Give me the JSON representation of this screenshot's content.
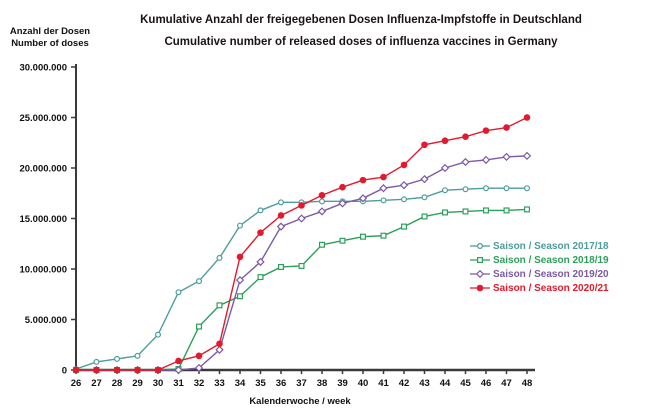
{
  "title": {
    "line1_de": "Kumulative Anzahl der freigegebenen Dosen Influenza-Impfstoffe in Deutschland",
    "line2_en": "Cumulative number of released doses of influenza vaccines in Germany"
  },
  "y_axis_label": {
    "line1": "Anzahl der Dosen",
    "line2": "Number of doses"
  },
  "x_axis_label": "Kalenderwoche / week",
  "chart_data": {
    "type": "line",
    "title": "Kumulative Anzahl der freigegebenen Dosen Influenza-Impfstoffe in Deutschland / Cumulative number of released doses of influenza vaccines in Germany",
    "xlabel": "Kalenderwoche / week",
    "ylabel": "Anzahl der Dosen / Number of doses",
    "grid": false,
    "legend_position": "right-middle",
    "x": [
      26,
      27,
      28,
      29,
      30,
      31,
      32,
      33,
      34,
      35,
      36,
      37,
      38,
      39,
      40,
      41,
      42,
      43,
      44,
      45,
      46,
      47,
      48
    ],
    "ylim_millions": [
      0,
      30
    ],
    "y_ticks_millions": [
      0,
      5,
      10,
      15,
      20,
      25,
      30
    ],
    "y_tick_labels": [
      "0",
      "5.000.000",
      "10.000.000",
      "15.000.000",
      "20.000.000",
      "25.000.000",
      "30.000.000"
    ],
    "values_unit": "millions of doses",
    "series": [
      {
        "id": "season-2017-18",
        "name": "Saison / Season 2017/18",
        "color": "#4e9c9c",
        "marker": "circle-open",
        "values_millions": [
          0.1,
          0.8,
          1.1,
          1.4,
          3.5,
          7.7,
          8.8,
          11.1,
          14.3,
          15.8,
          16.6,
          16.6,
          16.7,
          16.7,
          16.7,
          16.8,
          16.9,
          17.1,
          17.8,
          17.9,
          18.0,
          18.0,
          18.0
        ]
      },
      {
        "id": "season-2018-19",
        "name": "Saison / Season 2018/19",
        "color": "#2ca05a",
        "marker": "square-open",
        "values_millions": [
          0,
          0,
          0,
          0,
          0,
          0.1,
          4.3,
          6.4,
          7.3,
          9.2,
          10.2,
          10.3,
          12.4,
          12.8,
          13.2,
          13.3,
          14.2,
          15.2,
          15.6,
          15.7,
          15.8,
          15.8,
          15.9
        ]
      },
      {
        "id": "season-2019-20",
        "name": "Saison / Season 2019/20",
        "color": "#7b5aa6",
        "marker": "diamond-open",
        "values_millions": [
          0,
          0,
          0,
          0,
          0,
          0,
          0.2,
          2.0,
          8.9,
          10.7,
          14.2,
          15.0,
          15.7,
          16.5,
          17.0,
          18.0,
          18.3,
          18.9,
          20.0,
          20.6,
          20.8,
          21.1,
          21.2
        ]
      },
      {
        "id": "season-2020-21",
        "name": "Saison / Season 2020/21",
        "color": "#e11b2d",
        "marker": "circle-filled",
        "values_millions": [
          0,
          0,
          0,
          0,
          0,
          0.9,
          1.4,
          2.6,
          11.2,
          13.6,
          15.3,
          16.3,
          17.3,
          18.1,
          18.8,
          19.1,
          20.3,
          22.3,
          22.7,
          23.1,
          23.7,
          24.0,
          25.0
        ]
      }
    ]
  }
}
